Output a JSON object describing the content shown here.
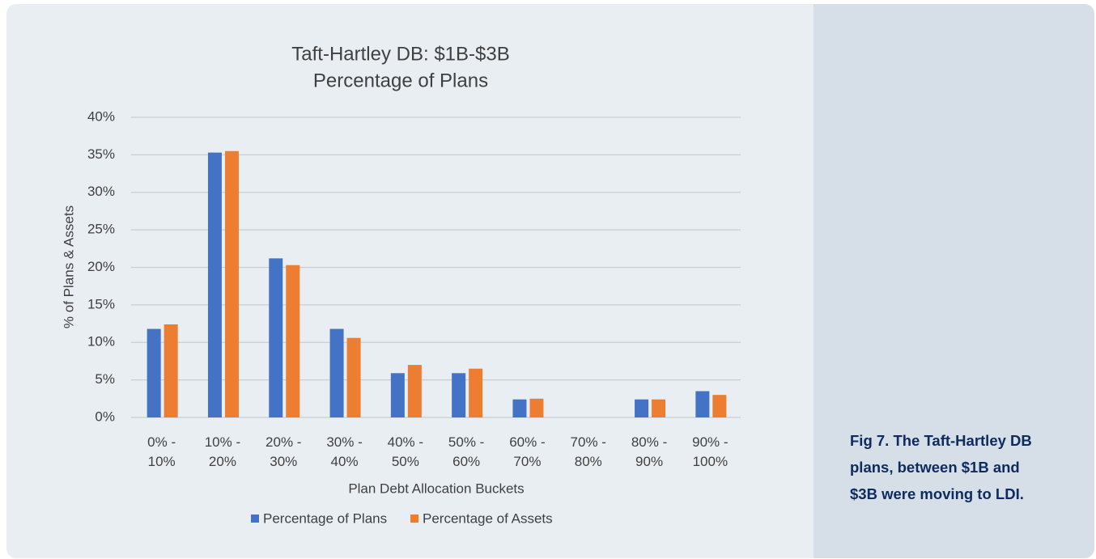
{
  "chart_data": {
    "type": "bar",
    "title": [
      "Taft-Hartley DB: $1B-$3B",
      "Percentage of Plans"
    ],
    "categories": [
      "0% - 10%",
      "10% - 20%",
      "20% - 30%",
      "30% - 40%",
      "40% - 50%",
      "50% - 60%",
      "60% - 70%",
      "70% - 80%",
      "80% - 90%",
      "90% - 100%"
    ],
    "series": [
      {
        "name": "Percentage of Plans",
        "color": "#4472c4",
        "values": [
          11.8,
          35.3,
          21.2,
          11.8,
          5.9,
          5.9,
          2.4,
          0,
          2.4,
          3.5
        ]
      },
      {
        "name": "Percentage of Assets",
        "color": "#ed7d31",
        "values": [
          12.4,
          35.5,
          20.3,
          10.6,
          7.0,
          6.5,
          2.5,
          0,
          2.4,
          3.0
        ]
      }
    ],
    "ylabel": "% of Plans & Assets",
    "xlabel": "Plan Debt Allocation Buckets",
    "ylim": [
      0,
      40
    ],
    "yticks": [
      {
        "value": 0,
        "label": "0%"
      },
      {
        "value": 5,
        "label": "5%"
      },
      {
        "value": 10,
        "label": "10%"
      },
      {
        "value": 15,
        "label": "15%"
      },
      {
        "value": 20,
        "label": "20%"
      },
      {
        "value": 25,
        "label": "25%"
      },
      {
        "value": 30,
        "label": "30%"
      },
      {
        "value": 35,
        "label": "35%"
      },
      {
        "value": 40,
        "label": "40%"
      }
    ],
    "grid": true,
    "legend": "bottom"
  },
  "caption": "Fig 7. The Taft-Hartley DB plans, between $1B and $3B were moving to LDI."
}
